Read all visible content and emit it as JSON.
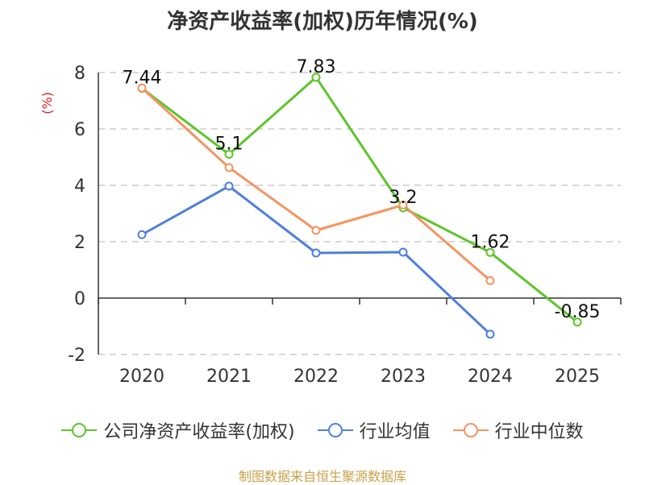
{
  "title": "净资产收益率(加权)历年情况(%)",
  "source": "制图数据来自恒生聚源数据库",
  "chart_data": {
    "type": "line",
    "title": "净资产收益率(加权)历年情况(%)",
    "ylabel": "(%)",
    "ylim": [
      -2,
      8
    ],
    "yticks": [
      -2,
      0,
      2,
      4,
      6,
      8
    ],
    "categories": [
      "2020",
      "2021",
      "2022",
      "2023",
      "2024",
      "2025"
    ],
    "grid": true,
    "legend_position": "bottom",
    "series": [
      {
        "name": "公司净资产收益率(加权)",
        "color": "#5cc52a",
        "show_labels": true,
        "labels": [
          "7.44",
          "5.1",
          "7.83",
          "3.2",
          "1.62",
          "-0.85"
        ],
        "values": [
          7.44,
          5.1,
          7.83,
          3.2,
          1.62,
          -0.85
        ]
      },
      {
        "name": "行业均值",
        "color": "#4f7fdd",
        "show_labels": false,
        "values": [
          2.25,
          3.97,
          1.6,
          1.63,
          -1.28,
          null
        ]
      },
      {
        "name": "行业中位数",
        "color": "#f59460",
        "show_labels": false,
        "values": [
          7.45,
          4.63,
          2.4,
          3.3,
          0.62,
          null
        ]
      }
    ]
  }
}
